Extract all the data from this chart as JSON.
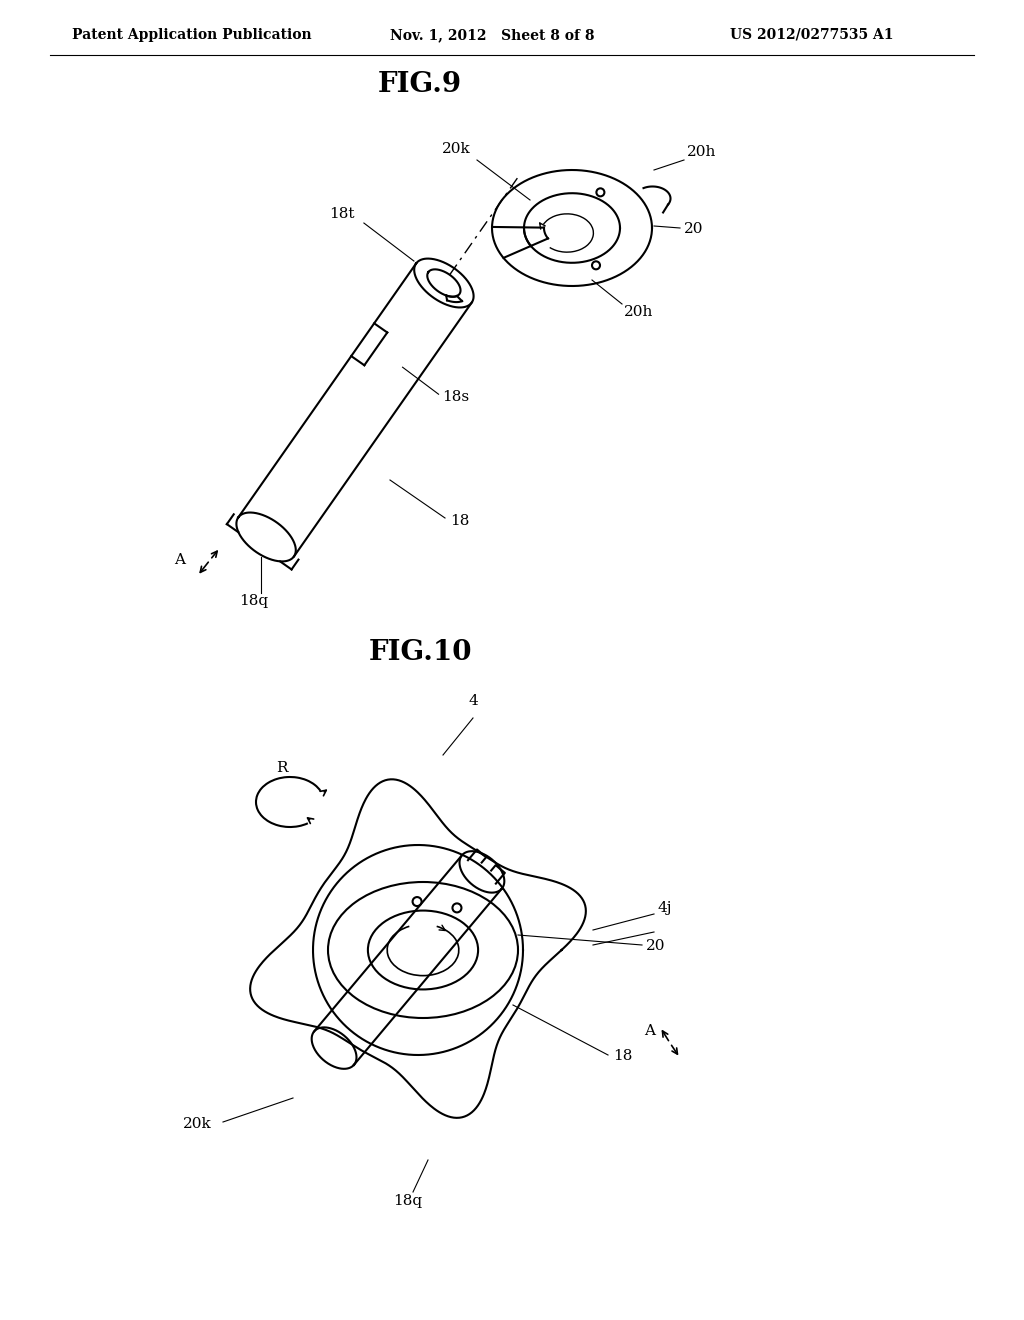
{
  "background_color": "#ffffff",
  "header_left": "Patent Application Publication",
  "header_center": "Nov. 1, 2012   Sheet 8 of 8",
  "header_right": "US 2012/0277535 A1",
  "fig9_title": "FIG.9",
  "fig10_title": "FIG.10",
  "line_color": "#000000",
  "label_fontsize": 11,
  "header_fontsize": 10,
  "title_fontsize": 20
}
